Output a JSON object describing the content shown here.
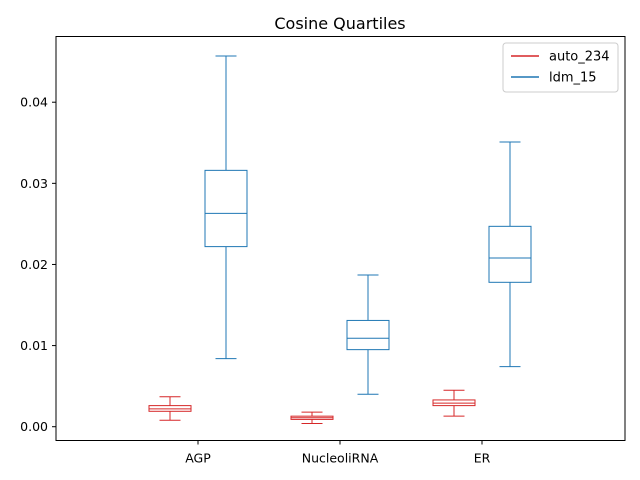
{
  "chart_data": {
    "type": "box",
    "title": "Cosine Quartiles",
    "xlabel": "",
    "ylabel": "",
    "categories": [
      "AGP",
      "NucleoliRNA",
      "ER"
    ],
    "ylim": [
      -0.0017,
      0.0481
    ],
    "yticks": [
      0.0,
      0.01,
      0.02,
      0.03,
      0.04
    ],
    "ytick_labels": [
      "0.00",
      "0.01",
      "0.02",
      "0.03",
      "0.04"
    ],
    "grid": false,
    "legend_position": "top-right",
    "series": [
      {
        "name": "auto_234",
        "color": "#d62728",
        "boxes": [
          {
            "whislo": 0.0008,
            "q1": 0.0019,
            "med": 0.0022,
            "q3": 0.0026,
            "whishi": 0.0037
          },
          {
            "whislo": 0.0004,
            "q1": 0.0009,
            "med": 0.0011,
            "q3": 0.0013,
            "whishi": 0.0018
          },
          {
            "whislo": 0.0013,
            "q1": 0.0026,
            "med": 0.0029,
            "q3": 0.0033,
            "whishi": 0.0045
          }
        ]
      },
      {
        "name": "ldm_15",
        "color": "#1f77b4",
        "boxes": [
          {
            "whislo": 0.0084,
            "q1": 0.0222,
            "med": 0.0263,
            "q3": 0.0316,
            "whishi": 0.0457
          },
          {
            "whislo": 0.004,
            "q1": 0.0095,
            "med": 0.0109,
            "q3": 0.0131,
            "whishi": 0.0187
          },
          {
            "whislo": 0.0074,
            "q1": 0.0178,
            "med": 0.0208,
            "q3": 0.0247,
            "whishi": 0.0351
          }
        ]
      }
    ]
  }
}
